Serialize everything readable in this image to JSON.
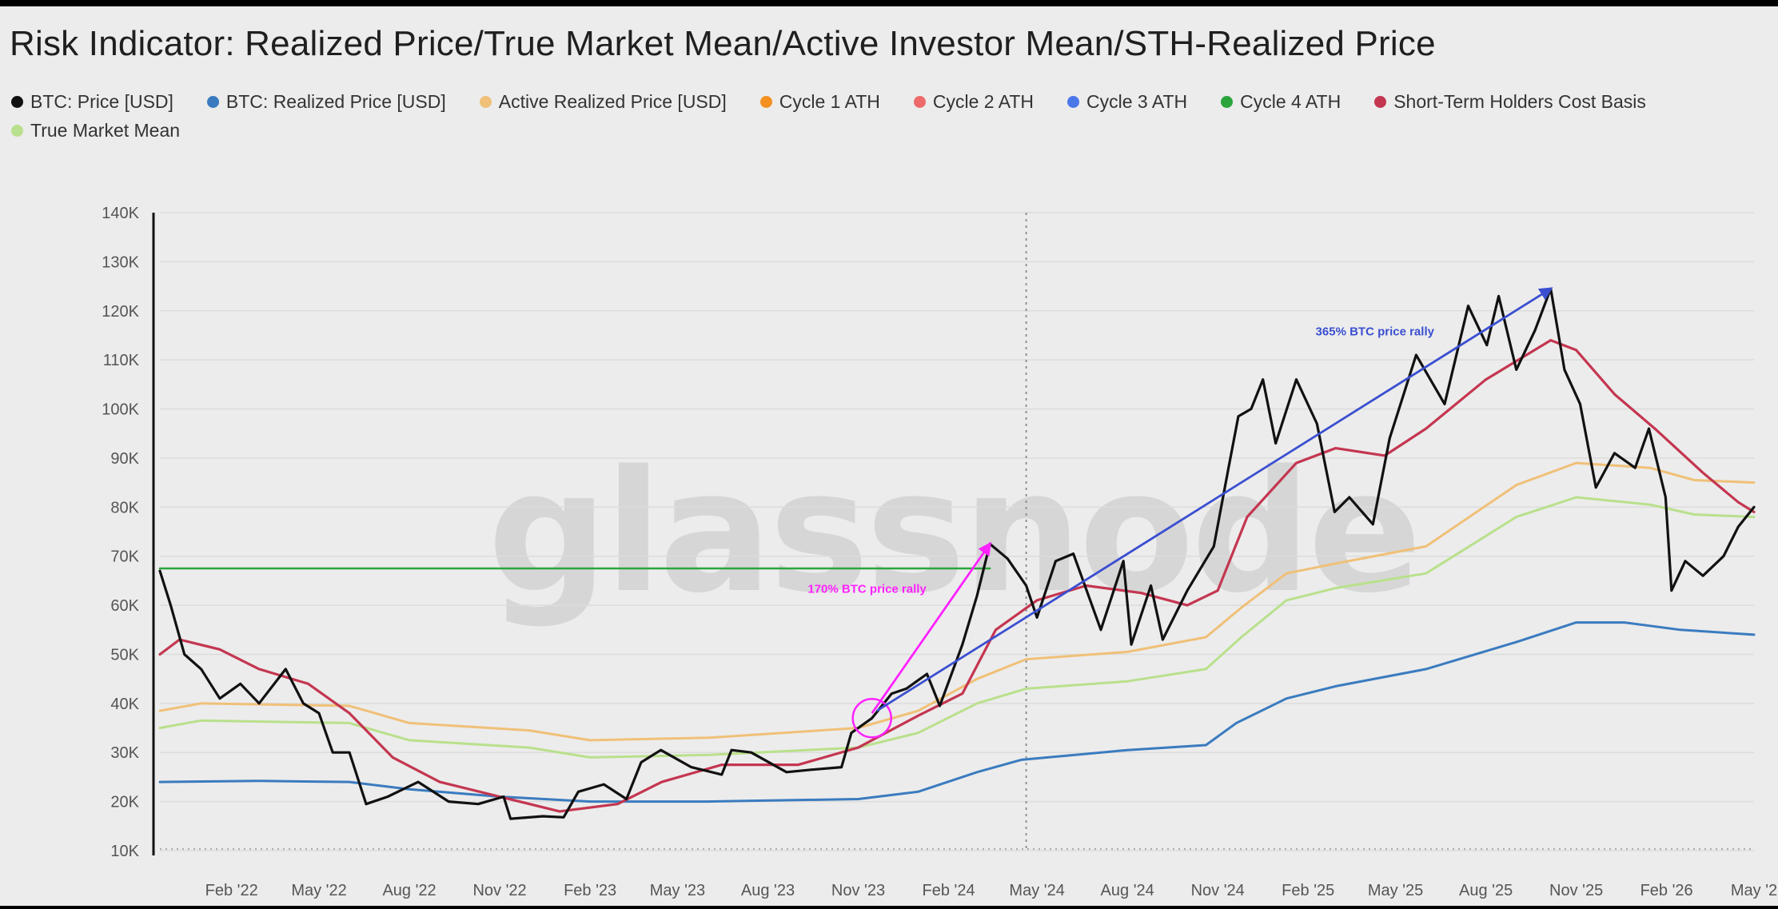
{
  "chart_data": {
    "type": "line",
    "title": "Risk Indicator: Realized Price/True Market Mean/Active Investor Mean/STH-Realized Price",
    "watermark": "glassnode",
    "legend_placement": "top",
    "grid": "horizontal",
    "x_range": [
      "2021-11-20",
      "2026-05-01"
    ],
    "ylim": [
      10000,
      140000
    ],
    "y_ticks": [
      {
        "value": 140000,
        "label": "140K"
      },
      {
        "value": 130000,
        "label": "130K"
      },
      {
        "value": 120000,
        "label": "120K"
      },
      {
        "value": 110000,
        "label": "110K"
      },
      {
        "value": 100000,
        "label": "100K"
      },
      {
        "value": 90000,
        "label": "90K"
      },
      {
        "value": 80000,
        "label": "80K"
      },
      {
        "value": 70000,
        "label": "70K"
      },
      {
        "value": 60000,
        "label": "60K"
      },
      {
        "value": 50000,
        "label": "50K"
      },
      {
        "value": 40000,
        "label": "40K"
      },
      {
        "value": 30000,
        "label": "30K"
      },
      {
        "value": 20000,
        "label": "20K"
      },
      {
        "value": 10000,
        "label": "10K"
      }
    ],
    "x_ticks": [
      {
        "date": "2022-02-01",
        "label": "Feb '22"
      },
      {
        "date": "2022-05-01",
        "label": "May '22"
      },
      {
        "date": "2022-08-01",
        "label": "Aug '22"
      },
      {
        "date": "2022-11-01",
        "label": "Nov '22"
      },
      {
        "date": "2023-02-01",
        "label": "Feb '23"
      },
      {
        "date": "2023-05-01",
        "label": "May '23"
      },
      {
        "date": "2023-08-01",
        "label": "Aug '23"
      },
      {
        "date": "2023-11-01",
        "label": "Nov '23"
      },
      {
        "date": "2024-02-01",
        "label": "Feb '24"
      },
      {
        "date": "2024-05-01",
        "label": "May '24"
      },
      {
        "date": "2024-08-01",
        "label": "Aug '24"
      },
      {
        "date": "2024-11-01",
        "label": "Nov '24"
      },
      {
        "date": "2025-02-01",
        "label": "Feb '25"
      },
      {
        "date": "2025-05-01",
        "label": "May '25"
      },
      {
        "date": "2025-08-01",
        "label": "Aug '25"
      },
      {
        "date": "2025-11-01",
        "label": "Nov '25"
      },
      {
        "date": "2026-02-01",
        "label": "Feb '26"
      },
      {
        "date": "2026-05-01",
        "label": "May '2"
      }
    ],
    "marker_date": "2024-04-20",
    "series": [
      {
        "name": "BTC: Price [USD]",
        "color": "#111111",
        "width": 3.2,
        "points": [
          [
            "2021-11-20",
            67000
          ],
          [
            "2021-12-01",
            60000
          ],
          [
            "2021-12-15",
            50000
          ],
          [
            "2022-01-01",
            47000
          ],
          [
            "2022-01-20",
            41000
          ],
          [
            "2022-02-10",
            44000
          ],
          [
            "2022-03-01",
            40000
          ],
          [
            "2022-03-28",
            47000
          ],
          [
            "2022-04-15",
            40000
          ],
          [
            "2022-05-01",
            38000
          ],
          [
            "2022-05-15",
            30000
          ],
          [
            "2022-06-01",
            30000
          ],
          [
            "2022-06-18",
            19500
          ],
          [
            "2022-07-10",
            21000
          ],
          [
            "2022-08-10",
            24000
          ],
          [
            "2022-09-10",
            20000
          ],
          [
            "2022-10-10",
            19500
          ],
          [
            "2022-11-05",
            21000
          ],
          [
            "2022-11-12",
            16500
          ],
          [
            "2022-12-15",
            17000
          ],
          [
            "2023-01-05",
            16800
          ],
          [
            "2023-01-20",
            22000
          ],
          [
            "2023-02-15",
            23500
          ],
          [
            "2023-03-10",
            20500
          ],
          [
            "2023-03-25",
            28000
          ],
          [
            "2023-04-14",
            30500
          ],
          [
            "2023-05-15",
            27000
          ],
          [
            "2023-06-15",
            25500
          ],
          [
            "2023-06-25",
            30500
          ],
          [
            "2023-07-15",
            30000
          ],
          [
            "2023-08-20",
            26000
          ],
          [
            "2023-09-15",
            26500
          ],
          [
            "2023-10-15",
            27000
          ],
          [
            "2023-10-25",
            34000
          ],
          [
            "2023-11-15",
            37000
          ],
          [
            "2023-12-05",
            42000
          ],
          [
            "2023-12-20",
            43000
          ],
          [
            "2024-01-10",
            46000
          ],
          [
            "2024-01-23",
            39500
          ],
          [
            "2024-02-15",
            52000
          ],
          [
            "2024-03-01",
            62000
          ],
          [
            "2024-03-14",
            72500
          ],
          [
            "2024-04-01",
            69500
          ],
          [
            "2024-04-20",
            64000
          ],
          [
            "2024-05-01",
            57500
          ],
          [
            "2024-05-20",
            69000
          ],
          [
            "2024-06-07",
            70500
          ],
          [
            "2024-07-05",
            55000
          ],
          [
            "2024-07-28",
            69000
          ],
          [
            "2024-08-05",
            52000
          ],
          [
            "2024-08-25",
            64000
          ],
          [
            "2024-09-06",
            53000
          ],
          [
            "2024-10-01",
            63000
          ],
          [
            "2024-10-28",
            72000
          ],
          [
            "2024-11-12",
            88000
          ],
          [
            "2024-11-22",
            98500
          ],
          [
            "2024-12-05",
            100000
          ],
          [
            "2024-12-17",
            106000
          ],
          [
            "2024-12-30",
            93000
          ],
          [
            "2025-01-20",
            106000
          ],
          [
            "2025-02-10",
            97000
          ],
          [
            "2025-02-28",
            79000
          ],
          [
            "2025-03-15",
            82000
          ],
          [
            "2025-04-08",
            76500
          ],
          [
            "2025-04-25",
            94000
          ],
          [
            "2025-05-22",
            111000
          ],
          [
            "2025-06-20",
            101000
          ],
          [
            "2025-07-14",
            121000
          ],
          [
            "2025-08-02",
            113000
          ],
          [
            "2025-08-14",
            123000
          ],
          [
            "2025-09-01",
            108000
          ],
          [
            "2025-09-20",
            116000
          ],
          [
            "2025-10-06",
            124500
          ],
          [
            "2025-10-20",
            108000
          ],
          [
            "2025-11-05",
            101000
          ],
          [
            "2025-11-21",
            84000
          ],
          [
            "2025-12-10",
            91000
          ],
          [
            "2025-12-31",
            88000
          ],
          [
            "2026-01-14",
            96000
          ],
          [
            "2026-01-31",
            82000
          ],
          [
            "2026-02-06",
            63000
          ],
          [
            "2026-02-20",
            69000
          ],
          [
            "2026-03-10",
            66000
          ],
          [
            "2026-03-31",
            70000
          ],
          [
            "2026-04-15",
            76000
          ],
          [
            "2026-05-01",
            80000
          ]
        ]
      },
      {
        "name": "BTC: Realized Price [USD]",
        "color": "#3a7bbf",
        "width": 3,
        "points": [
          [
            "2021-11-20",
            24000
          ],
          [
            "2022-03-01",
            24200
          ],
          [
            "2022-06-01",
            24000
          ],
          [
            "2022-08-01",
            22500
          ],
          [
            "2022-11-01",
            21000
          ],
          [
            "2023-02-01",
            20000
          ],
          [
            "2023-06-01",
            20000
          ],
          [
            "2023-11-01",
            20500
          ],
          [
            "2024-01-01",
            22000
          ],
          [
            "2024-03-01",
            26000
          ],
          [
            "2024-04-15",
            28500
          ],
          [
            "2024-08-01",
            30500
          ],
          [
            "2024-10-20",
            31500
          ],
          [
            "2024-11-20",
            36000
          ],
          [
            "2025-01-10",
            41000
          ],
          [
            "2025-03-01",
            43500
          ],
          [
            "2025-06-01",
            47000
          ],
          [
            "2025-09-01",
            52500
          ],
          [
            "2025-11-01",
            56500
          ],
          [
            "2025-12-20",
            56500
          ],
          [
            "2026-02-15",
            55000
          ],
          [
            "2026-05-01",
            54000
          ]
        ]
      },
      {
        "name": "Active Realized Price [USD]",
        "color": "#f0c078",
        "width": 3,
        "points": [
          [
            "2021-11-20",
            38500
          ],
          [
            "2022-01-01",
            40000
          ],
          [
            "2022-06-01",
            39500
          ],
          [
            "2022-08-01",
            36000
          ],
          [
            "2022-12-01",
            34500
          ],
          [
            "2023-02-01",
            32500
          ],
          [
            "2023-06-01",
            33000
          ],
          [
            "2023-11-01",
            35000
          ],
          [
            "2024-01-01",
            38500
          ],
          [
            "2024-03-01",
            45000
          ],
          [
            "2024-04-20",
            49000
          ],
          [
            "2024-08-01",
            50500
          ],
          [
            "2024-10-20",
            53500
          ],
          [
            "2024-11-25",
            59500
          ],
          [
            "2025-01-10",
            66500
          ],
          [
            "2025-03-01",
            68500
          ],
          [
            "2025-06-01",
            72000
          ],
          [
            "2025-09-01",
            84500
          ],
          [
            "2025-11-01",
            89000
          ],
          [
            "2026-01-15",
            88000
          ],
          [
            "2026-03-01",
            85500
          ],
          [
            "2026-05-01",
            85000
          ]
        ]
      },
      {
        "name": "True Market Mean",
        "color": "#b9e08c",
        "width": 3,
        "points": [
          [
            "2021-11-20",
            35000
          ],
          [
            "2022-01-01",
            36500
          ],
          [
            "2022-06-01",
            36000
          ],
          [
            "2022-08-01",
            32500
          ],
          [
            "2022-12-01",
            31000
          ],
          [
            "2023-02-01",
            29000
          ],
          [
            "2023-06-01",
            29500
          ],
          [
            "2023-11-01",
            31000
          ],
          [
            "2024-01-01",
            34000
          ],
          [
            "2024-03-01",
            40000
          ],
          [
            "2024-04-20",
            43000
          ],
          [
            "2024-08-01",
            44500
          ],
          [
            "2024-10-20",
            47000
          ],
          [
            "2024-11-25",
            53500
          ],
          [
            "2025-01-10",
            61000
          ],
          [
            "2025-03-01",
            63500
          ],
          [
            "2025-06-01",
            66500
          ],
          [
            "2025-09-01",
            78000
          ],
          [
            "2025-11-01",
            82000
          ],
          [
            "2026-01-15",
            80500
          ],
          [
            "2026-03-01",
            78500
          ],
          [
            "2026-05-01",
            78000
          ]
        ]
      },
      {
        "name": "Short-Term Holders Cost Basis",
        "color": "#c43650",
        "width": 3.2,
        "points": [
          [
            "2021-11-20",
            50000
          ],
          [
            "2021-12-10",
            53000
          ],
          [
            "2022-01-20",
            51000
          ],
          [
            "2022-03-01",
            47000
          ],
          [
            "2022-04-20",
            44000
          ],
          [
            "2022-06-01",
            38000
          ],
          [
            "2022-07-15",
            29000
          ],
          [
            "2022-09-01",
            24000
          ],
          [
            "2022-11-01",
            21000
          ],
          [
            "2023-01-01",
            18000
          ],
          [
            "2023-03-01",
            19500
          ],
          [
            "2023-04-15",
            24000
          ],
          [
            "2023-06-15",
            27500
          ],
          [
            "2023-09-01",
            27500
          ],
          [
            "2023-11-01",
            31000
          ],
          [
            "2024-01-01",
            37500
          ],
          [
            "2024-02-15",
            42000
          ],
          [
            "2024-03-20",
            55000
          ],
          [
            "2024-05-01",
            61000
          ],
          [
            "2024-06-20",
            64000
          ],
          [
            "2024-08-15",
            62500
          ],
          [
            "2024-10-01",
            60000
          ],
          [
            "2024-11-01",
            63000
          ],
          [
            "2024-12-01",
            78000
          ],
          [
            "2025-01-20",
            89000
          ],
          [
            "2025-03-01",
            92000
          ],
          [
            "2025-04-20",
            90500
          ],
          [
            "2025-06-01",
            96000
          ],
          [
            "2025-08-01",
            106000
          ],
          [
            "2025-10-06",
            114000
          ],
          [
            "2025-11-01",
            112000
          ],
          [
            "2025-12-10",
            103000
          ],
          [
            "2026-01-20",
            96000
          ],
          [
            "2026-03-10",
            87000
          ],
          [
            "2026-04-15",
            81000
          ],
          [
            "2026-05-01",
            79000
          ]
        ]
      },
      {
        "name": "Cycle 4 ATH",
        "color": "#2aa53c",
        "width": 2.5,
        "points": [
          [
            "2021-11-20",
            67500
          ],
          [
            "2024-03-14",
            67500
          ]
        ]
      }
    ],
    "legend": [
      {
        "label": "BTC: Price [USD]",
        "color": "#111111"
      },
      {
        "label": "BTC: Realized Price [USD]",
        "color": "#3a7bbf"
      },
      {
        "label": "Active Realized Price [USD]",
        "color": "#f0c078"
      },
      {
        "label": "Cycle 1 ATH",
        "color": "#f39020"
      },
      {
        "label": "Cycle 2 ATH",
        "color": "#ee6a6a"
      },
      {
        "label": "Cycle 3 ATH",
        "color": "#4a78e8"
      },
      {
        "label": "Cycle 4 ATH",
        "color": "#2aa53c"
      },
      {
        "label": "Short-Term Holders Cost Basis",
        "color": "#c43650"
      },
      {
        "label": "True Market Mean",
        "color": "#b9e08c"
      }
    ],
    "annotations": [
      {
        "text": "170% BTC price rally",
        "color": "#ff22ff",
        "date": "2023-11-10",
        "value": 62500,
        "arrow": {
          "from": [
            "2023-11-15",
            38000
          ],
          "to": [
            "2024-03-14",
            72500
          ]
        },
        "circle": {
          "date": "2023-11-15",
          "value": 37000
        }
      },
      {
        "text": "365% BTC price rally",
        "color": "#3a4fd0",
        "date": "2025-04-10",
        "value": 115000,
        "arrow": {
          "from": [
            "2023-11-20",
            38500
          ],
          "to": [
            "2025-10-06",
            124500
          ]
        }
      }
    ]
  }
}
